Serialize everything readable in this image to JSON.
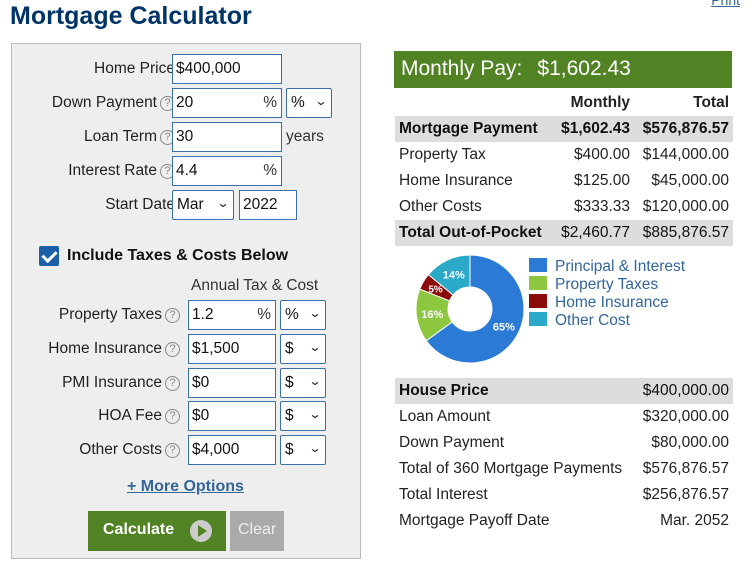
{
  "header": {
    "title": "Mortgage Calculator",
    "print_link": "Print"
  },
  "form": {
    "home_price": {
      "label": "Home Price",
      "value": "$400,000"
    },
    "down_payment": {
      "label": "Down Payment",
      "value": "20",
      "suffix": "%",
      "unit_select": "%"
    },
    "loan_term": {
      "label": "Loan Term",
      "value": "30",
      "unit": "years"
    },
    "interest_rate": {
      "label": "Interest Rate",
      "value": "4.4",
      "suffix": "%"
    },
    "start_date": {
      "label": "Start Date",
      "month": "Mar",
      "year": "2022"
    },
    "include_taxes": {
      "label": "Include Taxes & Costs Below",
      "checked": true
    },
    "annual_header": "Annual Tax & Cost",
    "property_taxes": {
      "label": "Property Taxes",
      "value": "1.2",
      "suffix": "%",
      "unit_select": "%"
    },
    "home_insurance": {
      "label": "Home Insurance",
      "value": "$1,500",
      "unit_select": "$"
    },
    "pmi_insurance": {
      "label": "PMI Insurance",
      "value": "$0",
      "unit_select": "$"
    },
    "hoa_fee": {
      "label": "HOA Fee",
      "value": "$0",
      "unit_select": "$"
    },
    "other_costs": {
      "label": "Other Costs",
      "value": "$4,000",
      "unit_select": "$"
    },
    "help_icon_glyph": "?",
    "more_options": "+ More Options",
    "calculate_label": "Calculate",
    "clear_label": "Clear"
  },
  "results": {
    "monthly_pay_label": "Monthly Pay:",
    "monthly_pay_value": "$1,602.43",
    "columns": {
      "monthly": "Monthly",
      "total": "Total"
    },
    "rows": [
      {
        "label": "Mortgage Payment",
        "monthly": "$1,602.43",
        "total": "$576,876.57"
      },
      {
        "label": "Property Tax",
        "monthly": "$400.00",
        "total": "$144,000.00"
      },
      {
        "label": "Home Insurance",
        "monthly": "$125.00",
        "total": "$45,000.00"
      },
      {
        "label": "Other Costs",
        "monthly": "$333.33",
        "total": "$120,000.00"
      },
      {
        "label": "Total Out-of-Pocket",
        "monthly": "$2,460.77",
        "total": "$885,876.57"
      }
    ],
    "summary": [
      {
        "label": "House Price",
        "value": "$400,000.00"
      },
      {
        "label": "Loan Amount",
        "value": "$320,000.00"
      },
      {
        "label": "Down Payment",
        "value": "$80,000.00"
      },
      {
        "label": "Total of 360 Mortgage Payments",
        "value": "$576,876.57"
      },
      {
        "label": "Total Interest",
        "value": "$256,876.57"
      },
      {
        "label": "Mortgage Payoff Date",
        "value": "Mar. 2052"
      }
    ]
  },
  "chart_data": {
    "type": "pie",
    "donut": true,
    "categories": [
      "Principal & Interest",
      "Property Taxes",
      "Home Insurance",
      "Other Cost"
    ],
    "values": [
      65,
      16,
      5,
      14
    ],
    "value_labels": [
      "65%",
      "16%",
      "5%",
      "14%"
    ],
    "colors": [
      "#2b7bd6",
      "#8dc63f",
      "#8b0a0a",
      "#2aa9c9"
    ],
    "legend_position": "right"
  }
}
